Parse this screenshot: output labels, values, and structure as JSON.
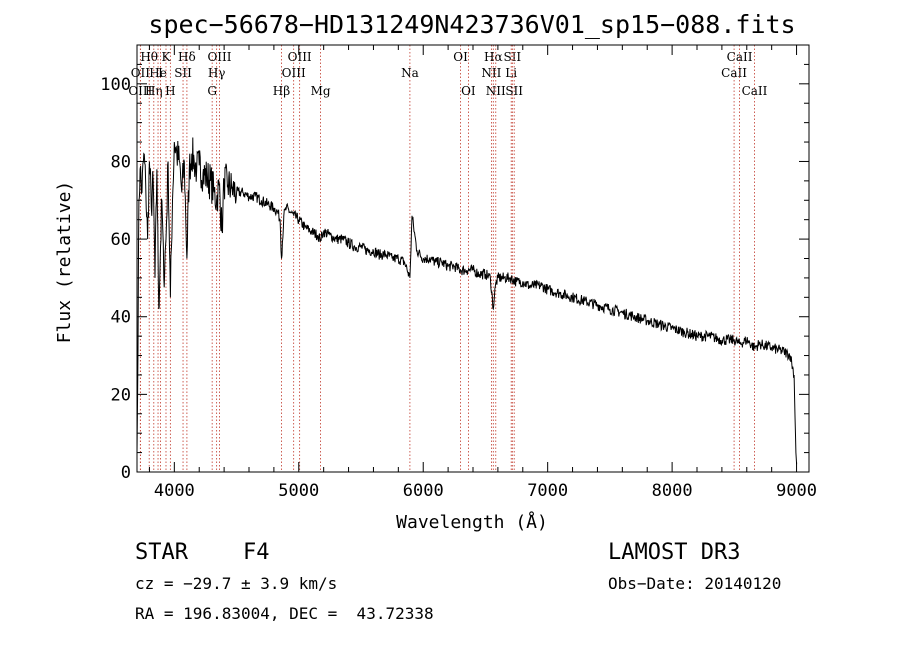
{
  "chart_data": {
    "type": "line",
    "title": "spec−56678−HD131249N423736V01_sp15−088.fits",
    "xlabel": "Wavelength (Å)",
    "ylabel": "Flux (relative)",
    "xlim": [
      3700,
      9100
    ],
    "ylim": [
      0,
      110
    ],
    "xticks": [
      4000,
      5000,
      6000,
      7000,
      8000,
      9000
    ],
    "yticks": [
      0,
      20,
      40,
      60,
      80,
      100
    ],
    "grid": false,
    "series": [
      {
        "name": "spectrum",
        "x": [
          3700,
          3705,
          3715,
          3725,
          3740,
          3755,
          3770,
          3785,
          3800,
          3815,
          3830,
          3845,
          3860,
          3875,
          3889,
          3900,
          3915,
          3933,
          3950,
          3968,
          3985,
          4000,
          4020,
          4040,
          4060,
          4080,
          4101,
          4120,
          4140,
          4160,
          4180,
          4200,
          4230,
          4260,
          4290,
          4320,
          4340,
          4360,
          4383,
          4400,
          4430,
          4460,
          4500,
          4550,
          4600,
          4650,
          4700,
          4750,
          4800,
          4830,
          4850,
          4861,
          4880,
          4900,
          4930,
          4960,
          5000,
          5050,
          5100,
          5150,
          5175,
          5200,
          5250,
          5300,
          5350,
          5400,
          5450,
          5500,
          5550,
          5600,
          5650,
          5700,
          5750,
          5800,
          5850,
          5893,
          5910,
          5950,
          6000,
          6050,
          6100,
          6150,
          6200,
          6250,
          6300,
          6350,
          6400,
          6450,
          6500,
          6540,
          6563,
          6580,
          6600,
          6650,
          6700,
          6750,
          6800,
          6850,
          6900,
          6950,
          7000,
          7100,
          7200,
          7300,
          7400,
          7500,
          7600,
          7700,
          7800,
          7900,
          8000,
          8100,
          8200,
          8300,
          8400,
          8500,
          8542,
          8600,
          8662,
          8700,
          8800,
          8900,
          8950,
          8980,
          8995,
          9000
        ],
        "y": [
          5,
          20,
          70,
          78,
          72,
          82,
          74,
          60,
          80,
          68,
          75,
          50,
          78,
          42,
          58,
          70,
          50,
          60,
          80,
          45,
          70,
          85,
          82,
          80,
          72,
          80,
          55,
          78,
          82,
          80,
          78,
          79,
          77,
          76,
          75,
          72,
          70,
          74,
          62,
          75,
          74,
          73,
          72,
          72,
          71,
          71,
          70,
          69,
          68,
          67,
          65,
          55,
          66,
          68,
          67,
          66,
          65,
          63,
          62,
          61,
          60,
          62,
          61,
          60,
          60,
          59,
          58,
          58,
          57,
          57,
          56,
          56,
          55,
          55,
          54,
          50,
          66,
          57,
          55,
          55,
          54,
          54,
          53,
          53,
          52,
          52,
          52,
          51,
          51,
          50,
          42,
          48,
          50,
          50,
          50,
          49,
          49,
          48,
          48,
          48,
          47,
          46,
          45,
          44,
          43,
          42,
          41,
          40,
          39,
          38,
          37,
          36,
          35,
          35,
          34,
          34,
          33,
          34,
          32,
          33,
          32,
          31,
          30,
          25,
          5,
          2
        ]
      }
    ],
    "line_markers": [
      {
        "wavelength": 3727,
        "label": "OII",
        "row": 2
      },
      {
        "wavelength": 3727,
        "label": "OIII",
        "row": 3
      },
      {
        "wavelength": 3798,
        "label": "Hθ",
        "row": 1
      },
      {
        "wavelength": 3835,
        "label": "Hη",
        "row": 3
      },
      {
        "wavelength": 3869,
        "label": "He",
        "row": 2
      },
      {
        "wavelength": 3889,
        "label": "I",
        "row": 2
      },
      {
        "wavelength": 3933,
        "label": "K",
        "row": 1
      },
      {
        "wavelength": 3968,
        "label": "H",
        "row": 3
      },
      {
        "wavelength": 4070,
        "label": "SII",
        "row": 2
      },
      {
        "wavelength": 4101,
        "label": "Hδ",
        "row": 1
      },
      {
        "wavelength": 4304,
        "label": "G",
        "row": 3
      },
      {
        "wavelength": 4340,
        "label": "Hγ",
        "row": 2
      },
      {
        "wavelength": 4363,
        "label": "OIII",
        "row": 1
      },
      {
        "wavelength": 4861,
        "label": "Hβ",
        "row": 3
      },
      {
        "wavelength": 4959,
        "label": "OIII",
        "row": 2
      },
      {
        "wavelength": 5007,
        "label": "OIII",
        "row": 1
      },
      {
        "wavelength": 5175,
        "label": "Mg",
        "row": 3
      },
      {
        "wavelength": 5893,
        "label": "Na",
        "row": 2
      },
      {
        "wavelength": 6300,
        "label": "OI",
        "row": 1
      },
      {
        "wavelength": 6363,
        "label": "OI",
        "row": 3
      },
      {
        "wavelength": 6548,
        "label": "NII",
        "row": 2
      },
      {
        "wavelength": 6563,
        "label": "Hα",
        "row": 1
      },
      {
        "wavelength": 6583,
        "label": "NII",
        "row": 3
      },
      {
        "wavelength": 6707,
        "label": "Li",
        "row": 2
      },
      {
        "wavelength": 6716,
        "label": "SII",
        "row": 1
      },
      {
        "wavelength": 6731,
        "label": "SII",
        "row": 3
      },
      {
        "wavelength": 8498,
        "label": "CaII",
        "row": 2
      },
      {
        "wavelength": 8542,
        "label": "CaII",
        "row": 1
      },
      {
        "wavelength": 8662,
        "label": "CaII",
        "row": 3
      }
    ]
  },
  "info": {
    "object_class": "STAR",
    "subclass": "F4",
    "survey": "LAMOST DR3",
    "redshift_text": "cz = −29.7 ± 3.9 km/s",
    "obs_date_text": "Obs−Date: 20140120",
    "coords_text": "RA = 196.83004, DEC =  43.72338"
  },
  "colors": {
    "spectrum": "#000000",
    "marker": "#c0392b"
  }
}
